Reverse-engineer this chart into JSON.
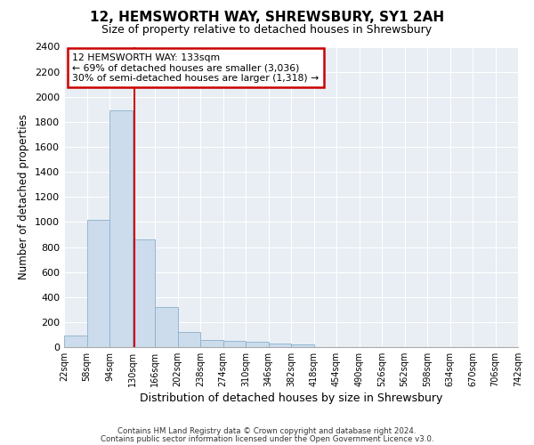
{
  "title1": "12, HEMSWORTH WAY, SHREWSBURY, SY1 2AH",
  "title2": "Size of property relative to detached houses in Shrewsbury",
  "xlabel": "Distribution of detached houses by size in Shrewsbury",
  "ylabel": "Number of detached properties",
  "footnote1": "Contains HM Land Registry data © Crown copyright and database right 2024.",
  "footnote2": "Contains public sector information licensed under the Open Government Licence v3.0.",
  "annotation_line1": "12 HEMSWORTH WAY: 133sqm",
  "annotation_line2": "← 69% of detached houses are smaller (3,036)",
  "annotation_line3": "30% of semi-detached houses are larger (1,318) →",
  "property_size": 133,
  "bar_color": "#ccdcec",
  "bar_edge_color": "#8ab0cc",
  "vline_color": "#cc0000",
  "annotation_box_edgecolor": "#cc0000",
  "background_color": "#e8eef4",
  "grid_color": "#ffffff",
  "ylim": [
    0,
    2400
  ],
  "bin_edges": [
    22,
    58,
    94,
    130,
    166,
    202,
    238,
    274,
    310,
    346,
    382,
    418,
    454,
    490,
    526,
    562,
    598,
    634,
    670,
    706,
    742
  ],
  "bar_heights": [
    90,
    1020,
    1890,
    860,
    320,
    120,
    55,
    50,
    40,
    25,
    20,
    0,
    0,
    0,
    0,
    0,
    0,
    0,
    0,
    0
  ],
  "yticks": [
    0,
    200,
    400,
    600,
    800,
    1000,
    1200,
    1400,
    1600,
    1800,
    2000,
    2200,
    2400
  ]
}
